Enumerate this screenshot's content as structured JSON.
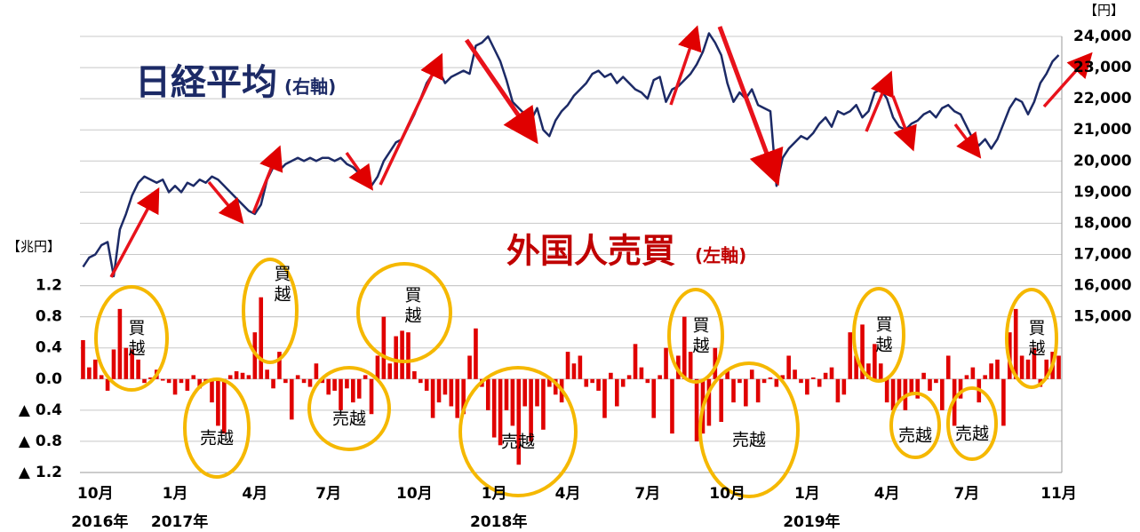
{
  "chart_data": {
    "type": "combo",
    "ylabel": "【兆円】",
    "y2label": "【円】",
    "ylim": [
      -1.2,
      4.4
    ],
    "yticks": [
      {
        "value": -1.2,
        "label": "▲ 1.2"
      },
      {
        "value": -0.8,
        "label": "▲ 0.8"
      },
      {
        "value": -0.4,
        "label": "▲ 0.4"
      },
      {
        "value": 0,
        "label": "0.0"
      },
      0.4,
      0.8,
      1.2
    ],
    "y2lim": [
      10000,
      24000
    ],
    "y2ticks": [
      {
        "value": 15000,
        "label": "15,000"
      },
      {
        "value": 16000,
        "label": "16,000"
      },
      {
        "value": 17000,
        "label": "17,000"
      },
      {
        "value": 18000,
        "label": "18,000"
      },
      {
        "value": 19000,
        "label": "19,000"
      },
      {
        "value": 20000,
        "label": "20,000"
      },
      {
        "value": 21000,
        "label": "21,000"
      },
      {
        "value": 22000,
        "label": "22,000"
      },
      {
        "value": 23000,
        "label": "23,000"
      },
      {
        "value": 24000,
        "label": "24,000"
      }
    ],
    "grid": true,
    "categories": [
      null,
      null,
      "10月",
      null,
      null,
      null,
      null,
      null,
      null,
      null,
      null,
      null,
      null,
      null,
      null,
      "1月",
      null,
      null,
      null,
      null,
      null,
      null,
      null,
      null,
      null,
      null,
      null,
      null,
      "4月",
      null,
      null,
      null,
      null,
      null,
      null,
      null,
      null,
      null,
      null,
      null,
      "7月",
      null,
      null,
      null,
      null,
      null,
      null,
      null,
      null,
      null,
      null,
      null,
      null,
      null,
      "10月",
      null,
      null,
      null,
      null,
      null,
      null,
      null,
      null,
      null,
      null,
      null,
      null,
      "1月",
      null,
      null,
      null,
      null,
      null,
      null,
      null,
      null,
      null,
      null,
      null,
      "4月",
      null,
      null,
      null,
      null,
      null,
      null,
      null,
      null,
      null,
      null,
      null,
      null,
      "7月",
      null,
      null,
      null,
      null,
      null,
      null,
      null,
      null,
      null,
      null,
      null,
      null,
      "10月",
      null,
      null,
      null,
      null,
      null,
      null,
      null,
      null,
      null,
      null,
      null,
      null,
      "1月",
      null,
      null,
      null,
      null,
      null,
      null,
      null,
      null,
      null,
      null,
      null,
      null,
      "4月",
      null,
      null,
      null,
      null,
      null,
      null,
      null,
      null,
      null,
      null,
      null,
      null,
      "7月",
      null,
      null,
      null,
      null,
      null,
      null,
      null,
      null,
      null,
      null,
      null,
      null,
      null,
      null,
      "11月"
    ],
    "category_years": [
      null,
      null,
      "2016年",
      null,
      null,
      null,
      null,
      null,
      null,
      null,
      null,
      null,
      null,
      null,
      null,
      "2017年",
      null,
      null,
      null,
      null,
      null,
      null,
      null,
      null,
      null,
      null,
      null,
      null,
      null,
      null,
      null,
      null,
      null,
      null,
      null,
      null,
      null,
      null,
      null,
      null,
      null,
      null,
      null,
      null,
      null,
      null,
      null,
      null,
      null,
      null,
      null,
      null,
      null,
      null,
      null,
      null,
      null,
      null,
      null,
      null,
      null,
      null,
      null,
      null,
      null,
      null,
      null,
      "2018年",
      null,
      null,
      null,
      null,
      null,
      null,
      null,
      null,
      null,
      null,
      null,
      null,
      null,
      null,
      null,
      null,
      null,
      null,
      null,
      null,
      null,
      null,
      null,
      null,
      null,
      null,
      null,
      null,
      null,
      null,
      null,
      null,
      null,
      null,
      null,
      null,
      null,
      null,
      null,
      null,
      null,
      null,
      null,
      null,
      null,
      null,
      null,
      null,
      null,
      null,
      "2019年",
      null,
      null,
      null,
      null,
      null,
      null,
      null,
      null,
      null,
      null,
      null,
      null,
      null,
      null,
      null,
      null,
      null,
      null,
      null,
      null,
      null,
      null,
      null,
      null,
      null,
      null,
      null,
      null,
      null,
      null,
      null,
      null,
      null,
      null,
      null,
      null,
      null,
      null,
      null,
      null,
      null
    ],
    "series": [
      {
        "name": "外国人売買",
        "axis_label": "(左軸)",
        "type": "bar",
        "color": "#e00000",
        "values": [
          0.5,
          0.15,
          0.25,
          0.05,
          -0.15,
          0.38,
          0.9,
          0.4,
          0.38,
          0.25,
          -0.05,
          0.02,
          0.12,
          -0.02,
          -0.05,
          -0.2,
          -0.05,
          -0.15,
          0.05,
          -0.12,
          -0.05,
          -0.3,
          -0.6,
          -0.7,
          0.05,
          0.1,
          0.08,
          0.05,
          0.6,
          1.05,
          0.12,
          -0.12,
          0.35,
          -0.05,
          -0.52,
          0.05,
          -0.05,
          -0.1,
          0.2,
          -0.05,
          -0.2,
          -0.15,
          -0.4,
          -0.12,
          -0.3,
          -0.25,
          0.05,
          -0.45,
          0.3,
          0.8,
          0.2,
          0.55,
          0.62,
          0.6,
          0.1,
          -0.05,
          -0.15,
          -0.5,
          -0.3,
          -0.2,
          -0.35,
          -0.5,
          -0.45,
          0.3,
          0.65,
          -0.1,
          -0.4,
          -0.75,
          -0.85,
          -0.4,
          -0.6,
          -1.1,
          -0.35,
          -0.8,
          -0.35,
          -0.65,
          -0.1,
          -0.2,
          -0.3,
          0.35,
          0.2,
          0.3,
          -0.1,
          -0.05,
          -0.15,
          -0.5,
          0.08,
          -0.35,
          -0.1,
          0.05,
          0.45,
          0.15,
          -0.05,
          -0.5,
          0.05,
          0.4,
          -0.7,
          0.3,
          0.8,
          0.35,
          -0.8,
          -0.7,
          -0.6,
          0.4,
          -0.55,
          0.1,
          -0.3,
          -0.05,
          -0.35,
          0.12,
          -0.3,
          -0.05,
          0.02,
          -0.1,
          0.05,
          0.3,
          0.12,
          -0.05,
          -0.2,
          0.02,
          -0.1,
          0.08,
          0.15,
          -0.3,
          -0.2,
          0.6,
          0.3,
          0.7,
          0.2,
          0.45,
          0.2,
          -0.3,
          -0.4,
          -0.3,
          -0.4,
          -0.2,
          -0.25,
          0.08,
          -0.15,
          -0.05,
          -0.4,
          0.3,
          -0.6,
          -0.25,
          0.05,
          0.15,
          -0.3,
          0.05,
          0.2,
          0.25,
          -0.6,
          0.6,
          0.9,
          0.3,
          0.25,
          0.4,
          -0.1,
          0.25,
          0.35,
          0.3
        ]
      },
      {
        "name": "日経平均",
        "axis_label": "(右軸)",
        "type": "line",
        "axis": "y2",
        "color": "#1c2a66",
        "values": [
          16600,
          16900,
          17000,
          17300,
          17400,
          16300,
          17800,
          18300,
          18900,
          19300,
          19500,
          19400,
          19300,
          19400,
          19000,
          19200,
          19000,
          19300,
          19200,
          19400,
          19300,
          19500,
          19400,
          19200,
          19000,
          18800,
          18600,
          18400,
          18300,
          18600,
          19400,
          19800,
          19700,
          19900,
          20000,
          20100,
          20000,
          20100,
          20000,
          20100,
          20100,
          20000,
          20100,
          19900,
          19800,
          19600,
          19400,
          19200,
          19500,
          20000,
          20300,
          20600,
          20700,
          21100,
          21500,
          22000,
          22500,
          22800,
          22900,
          22500,
          22700,
          22800,
          22900,
          22800,
          23700,
          23800,
          24000,
          23600,
          23200,
          22600,
          21900,
          21700,
          21500,
          21300,
          21700,
          21000,
          20800,
          21300,
          21600,
          21800,
          22100,
          22300,
          22500,
          22800,
          22900,
          22700,
          22800,
          22500,
          22700,
          22500,
          22300,
          22200,
          22000,
          22600,
          22700,
          21900,
          22300,
          22400,
          22600,
          22800,
          23100,
          23500,
          24100,
          23800,
          23400,
          22500,
          21900,
          22200,
          22000,
          22300,
          21800,
          21700,
          21600,
          19200,
          20100,
          20400,
          20600,
          20800,
          20700,
          20900,
          21200,
          21400,
          21100,
          21600,
          21500,
          21600,
          21800,
          21400,
          21600,
          22200,
          22300,
          22000,
          21400,
          21100,
          21000,
          21200,
          21300,
          21500,
          21600,
          21400,
          21700,
          21800,
          21600,
          21500,
          21100,
          20700,
          20500,
          20700,
          20400,
          20700,
          21200,
          21700,
          22000,
          21900,
          21500,
          21900,
          22500,
          22800,
          23200,
          23400
        ]
      }
    ],
    "annotations": [
      "買越",
      "売越",
      "買越",
      "売越",
      "買越",
      "売越",
      "買越",
      "売越",
      "買越",
      "売越",
      "売越",
      "買越"
    ]
  }
}
